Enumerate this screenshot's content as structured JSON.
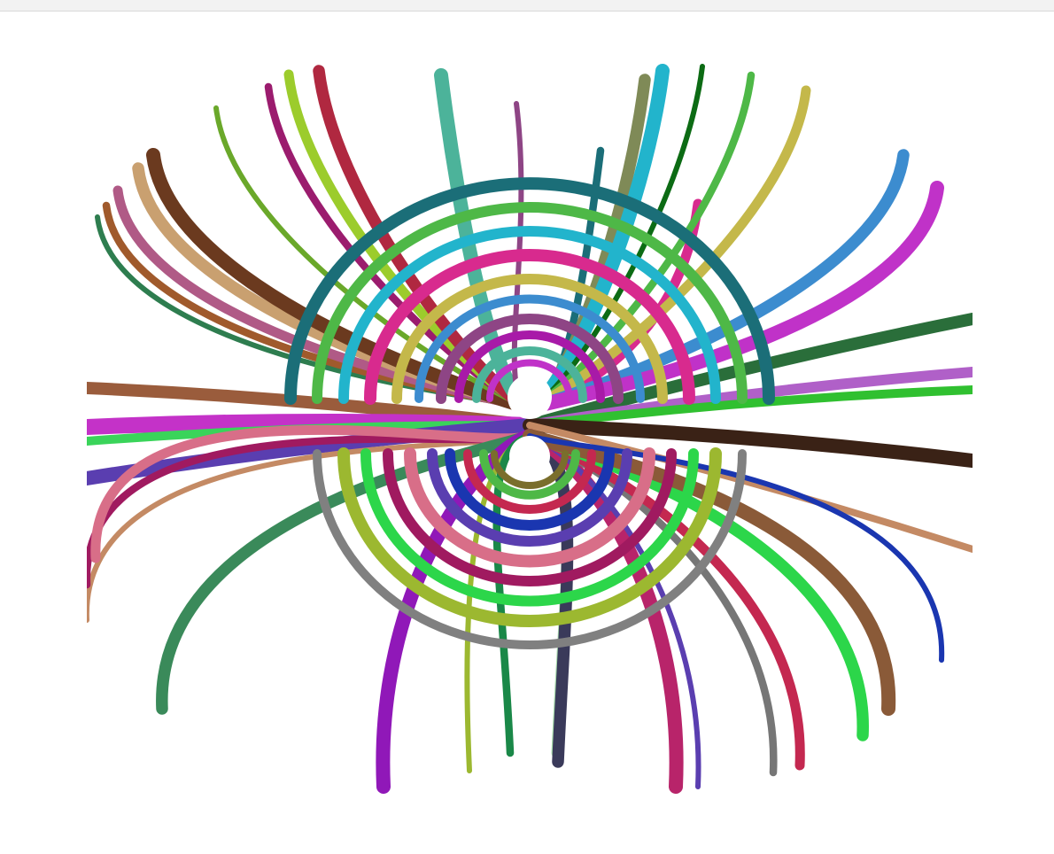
{
  "window": {
    "background": "#ffffff",
    "toolbar_color": "#f2f2f2"
  },
  "artwork": {
    "kind": "spiral-field",
    "stroke_palette": [
      "#2e7d4f",
      "#a05a2c",
      "#b05a86",
      "#c9a070",
      "#6b3a1f",
      "#6aa82a",
      "#9b1c6e",
      "#9ccc2c",
      "#b02840",
      "#4cb39a",
      "#8e4585",
      "#1b6e78",
      "#d82a8e",
      "#7f8a57",
      "#22b4cc",
      "#0c6b14",
      "#4eb847",
      "#c4b84a",
      "#3c8ccf",
      "#c032c8",
      "#5b3e10",
      "#c41a6a",
      "#8a22cc",
      "#a84040",
      "#5e9e1c",
      "#a81aa8",
      "#2a6e3a",
      "#a860c0",
      "#30c030",
      "#3a2216",
      "#c48a64",
      "#a01a60",
      "#d86e88",
      "#3a8a5a",
      "#9018b8",
      "#9cb830",
      "#1a8848",
      "#a8dcac",
      "#3a3a5a",
      "#b8246a",
      "#5a3eb0",
      "#767676",
      "#c42850",
      "#2cd64a",
      "#8a5a38",
      "#1a36b0",
      "#7a6e2c",
      "#808080"
    ]
  }
}
